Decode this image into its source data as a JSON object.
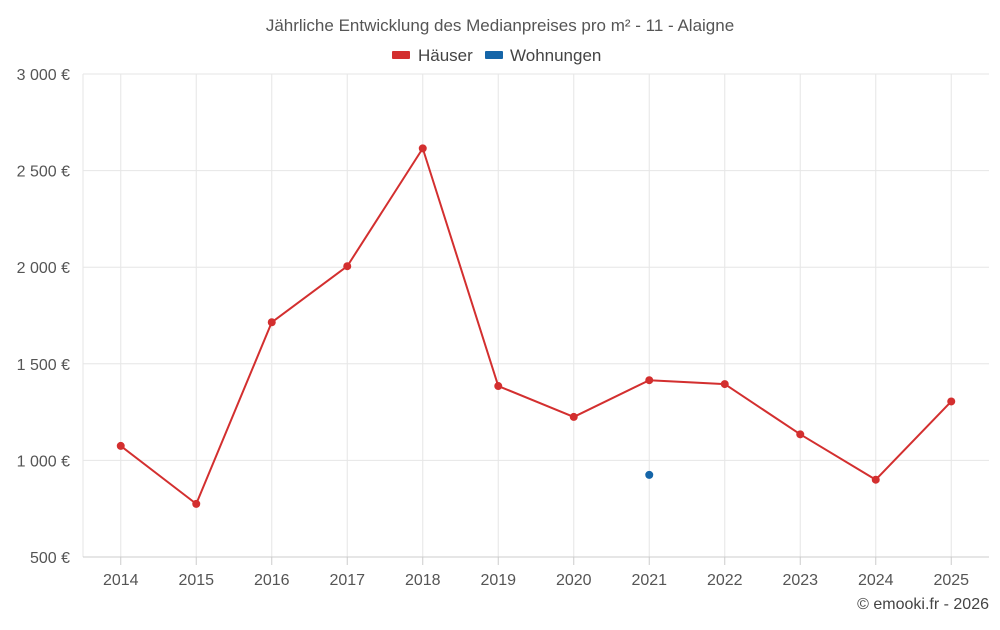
{
  "chart_data": {
    "type": "line",
    "title": "Jährliche Entwicklung des Medianpreises pro m² - 11 - Alaigne",
    "categories": [
      "2014",
      "2015",
      "2016",
      "2017",
      "2018",
      "2019",
      "2020",
      "2021",
      "2022",
      "2023",
      "2024",
      "2025"
    ],
    "series": [
      {
        "name": "Häuser",
        "color": "#d32f2f",
        "values": [
          1075,
          775,
          1715,
          2005,
          2615,
          1385,
          1225,
          1415,
          1395,
          1135,
          900,
          1305
        ]
      },
      {
        "name": "Wohnungen",
        "color": "#1565a8",
        "values": [
          null,
          null,
          null,
          null,
          null,
          null,
          null,
          925,
          null,
          null,
          null,
          null
        ]
      }
    ],
    "ylim": [
      500,
      3000
    ],
    "yticks": [
      500,
      1000,
      1500,
      2000,
      2500,
      3000
    ],
    "ytick_labels": [
      "500 €",
      "1 000 €",
      "1 500 €",
      "2 000 €",
      "2 500 €",
      "3 000 €"
    ],
    "xlabel": "",
    "ylabel": "",
    "grid": true,
    "legend_position": "top-center"
  },
  "credit": "© emooki.fr - 2026"
}
